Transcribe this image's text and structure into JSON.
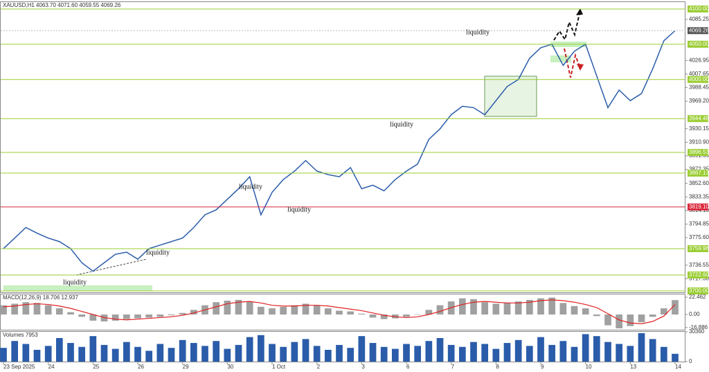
{
  "chart_data": [
    {
      "type": "line",
      "title": "XAUUSD,H1  4063.70 4071.60 4059.55 4069.26",
      "categories": [
        "23 Sep 2025",
        null,
        null,
        null,
        "24",
        null,
        null,
        null,
        "25",
        null,
        null,
        null,
        "26",
        null,
        null,
        null,
        "29",
        null,
        null,
        null,
        "30",
        null,
        null,
        null,
        "1 Oct",
        null,
        null,
        null,
        "2",
        null,
        null,
        null,
        "3",
        null,
        null,
        null,
        "6",
        null,
        null,
        null,
        "7",
        null,
        null,
        null,
        "8",
        null,
        null,
        null,
        "9",
        null,
        null,
        null,
        "10",
        null,
        null,
        null,
        "13",
        null,
        null,
        null,
        "14"
      ],
      "series": [
        {
          "name": "XAUUSD",
          "color": "#2a5caa",
          "values": [
            3760,
            3775,
            3790,
            3782,
            3775,
            3770,
            3760,
            3740,
            3728,
            3740,
            3752,
            3755,
            3745,
            3760,
            3765,
            3770,
            3775,
            3790,
            3808,
            3815,
            3830,
            3845,
            3862,
            3808,
            3840,
            3858,
            3870,
            3885,
            3870,
            3865,
            3862,
            3875,
            3845,
            3850,
            3842,
            3858,
            3870,
            3880,
            3915,
            3930,
            3950,
            3962,
            3960,
            3950,
            3970,
            3990,
            4000,
            4030,
            4045,
            4050,
            4020,
            4040,
            4050,
            4005,
            3960,
            3985,
            3970,
            3980,
            4015,
            4055,
            4069.26
          ]
        }
      ],
      "ylim": [
        3698,
        4109.8
      ],
      "yticks": [
        {
          "value": 4085.25,
          "label": "4085.25"
        },
        {
          "value": 4026.95,
          "label": "4026.95"
        },
        {
          "value": 4007.65,
          "label": "4007.65"
        },
        {
          "value": 3988.45,
          "label": "3988.45"
        },
        {
          "value": 3969.2,
          "label": "3969.20"
        },
        {
          "value": 3930.15,
          "label": "3930.15"
        },
        {
          "value": 3910.9,
          "label": "3910.90"
        },
        {
          "value": 3891.65,
          "label": "3891.65"
        },
        {
          "value": 3872.35,
          "label": "3872.35"
        },
        {
          "value": 3852.6,
          "label": "3852.60"
        },
        {
          "value": 3833.35,
          "label": "3833.35"
        },
        {
          "value": 3814.1,
          "label": "3814.10"
        },
        {
          "value": 3794.85,
          "label": "3794.85"
        },
        {
          "value": 3775.6,
          "label": "3775.60"
        },
        {
          "value": 3736.55,
          "label": "3736.55"
        },
        {
          "value": 3717.3,
          "label": "3717.30"
        }
      ],
      "levels": [
        {
          "value": 4100,
          "label": "4100.00",
          "color": "#9acd32"
        },
        {
          "value": 4050,
          "label": "4050.00",
          "color": "#9acd32"
        },
        {
          "value": 4000,
          "label": "4000.00",
          "color": "#9acd32"
        },
        {
          "value": 3944.48,
          "label": "3944.48",
          "color": "#9acd32"
        },
        {
          "value": 3896.53,
          "label": "3896.53",
          "color": "#9acd32"
        },
        {
          "value": 3867.13,
          "label": "3867.13",
          "color": "#9acd32"
        },
        {
          "value": 3819.1,
          "label": "3819.10",
          "color": "#d9263a"
        },
        {
          "value": 3759.96,
          "label": "3759.96",
          "color": "#9acd32"
        },
        {
          "value": 3722.6,
          "label": "3722.60",
          "color": "#9acd32"
        },
        {
          "value": 3700,
          "label": "3700.00",
          "color": "#9acd32"
        }
      ],
      "last_price": 4069.26,
      "annotations": [
        "liquidity",
        "liquidity",
        "liquidity",
        "liquidity",
        "liquidity",
        "liquidity"
      ]
    },
    {
      "type": "bar",
      "title": "MACD(12,26,9) 18.706 12.937",
      "series": [
        {
          "name": "MACD",
          "color": "#a0a0a0",
          "values": [
            12,
            14,
            16,
            15,
            12,
            8,
            3,
            -3,
            -8,
            -9,
            -8,
            -6,
            -5,
            -4,
            -3,
            -1,
            2,
            6,
            12,
            16,
            18,
            19,
            17,
            10,
            8,
            10,
            12,
            14,
            12,
            8,
            5,
            4,
            1,
            -4,
            -6,
            -5,
            -3,
            0,
            6,
            12,
            17,
            21,
            20,
            16,
            14,
            15,
            17,
            19,
            21,
            22,
            15,
            11,
            8,
            -2,
            -14,
            -18,
            -15,
            -10,
            -3,
            8,
            18.706
          ]
        },
        {
          "name": "Signal",
          "color": "#e02020",
          "values": [
            10,
            11,
            13,
            14,
            13,
            11,
            8,
            4,
            0,
            -4,
            -6,
            -7,
            -6,
            -5,
            -4,
            -3,
            -1,
            2,
            6,
            10,
            14,
            16,
            17,
            15,
            12,
            11,
            11,
            12,
            12,
            11,
            9,
            7,
            5,
            2,
            -1,
            -3,
            -4,
            -3,
            0,
            4,
            9,
            13,
            16,
            17,
            16,
            15,
            15,
            16,
            18,
            19,
            18,
            16,
            13,
            9,
            1,
            -7,
            -11,
            -12,
            -9,
            -2,
            12.937
          ]
        }
      ],
      "ylim": [
        -19.8,
        26.1
      ],
      "yticks": [
        22.462,
        {
          "value": 0,
          "label": "0.00"
        },
        -16.886
      ]
    },
    {
      "type": "bar",
      "title": "Volumes 7953",
      "series": [
        {
          "name": "Volumes",
          "color": "#2a5caa",
          "values": [
            14000,
            21000,
            18000,
            12000,
            16000,
            24000,
            19000,
            15000,
            26000,
            17000,
            13000,
            20000,
            15000,
            11000,
            18000,
            14000,
            22000,
            19000,
            16000,
            21000,
            13000,
            17000,
            25000,
            27000,
            18000,
            15000,
            20000,
            23000,
            16000,
            12000,
            17000,
            14000,
            26000,
            19000,
            15000,
            13000,
            18000,
            16000,
            21000,
            24000,
            17000,
            15000,
            20000,
            18000,
            13000,
            19000,
            22000,
            16000,
            25000,
            17000,
            21000,
            15000,
            28000,
            26000,
            20000,
            18000,
            16000,
            29000,
            23000,
            15000,
            7953
          ]
        }
      ],
      "ylim": [
        0,
        30360
      ],
      "yticks": [
        0,
        30360
      ]
    }
  ]
}
